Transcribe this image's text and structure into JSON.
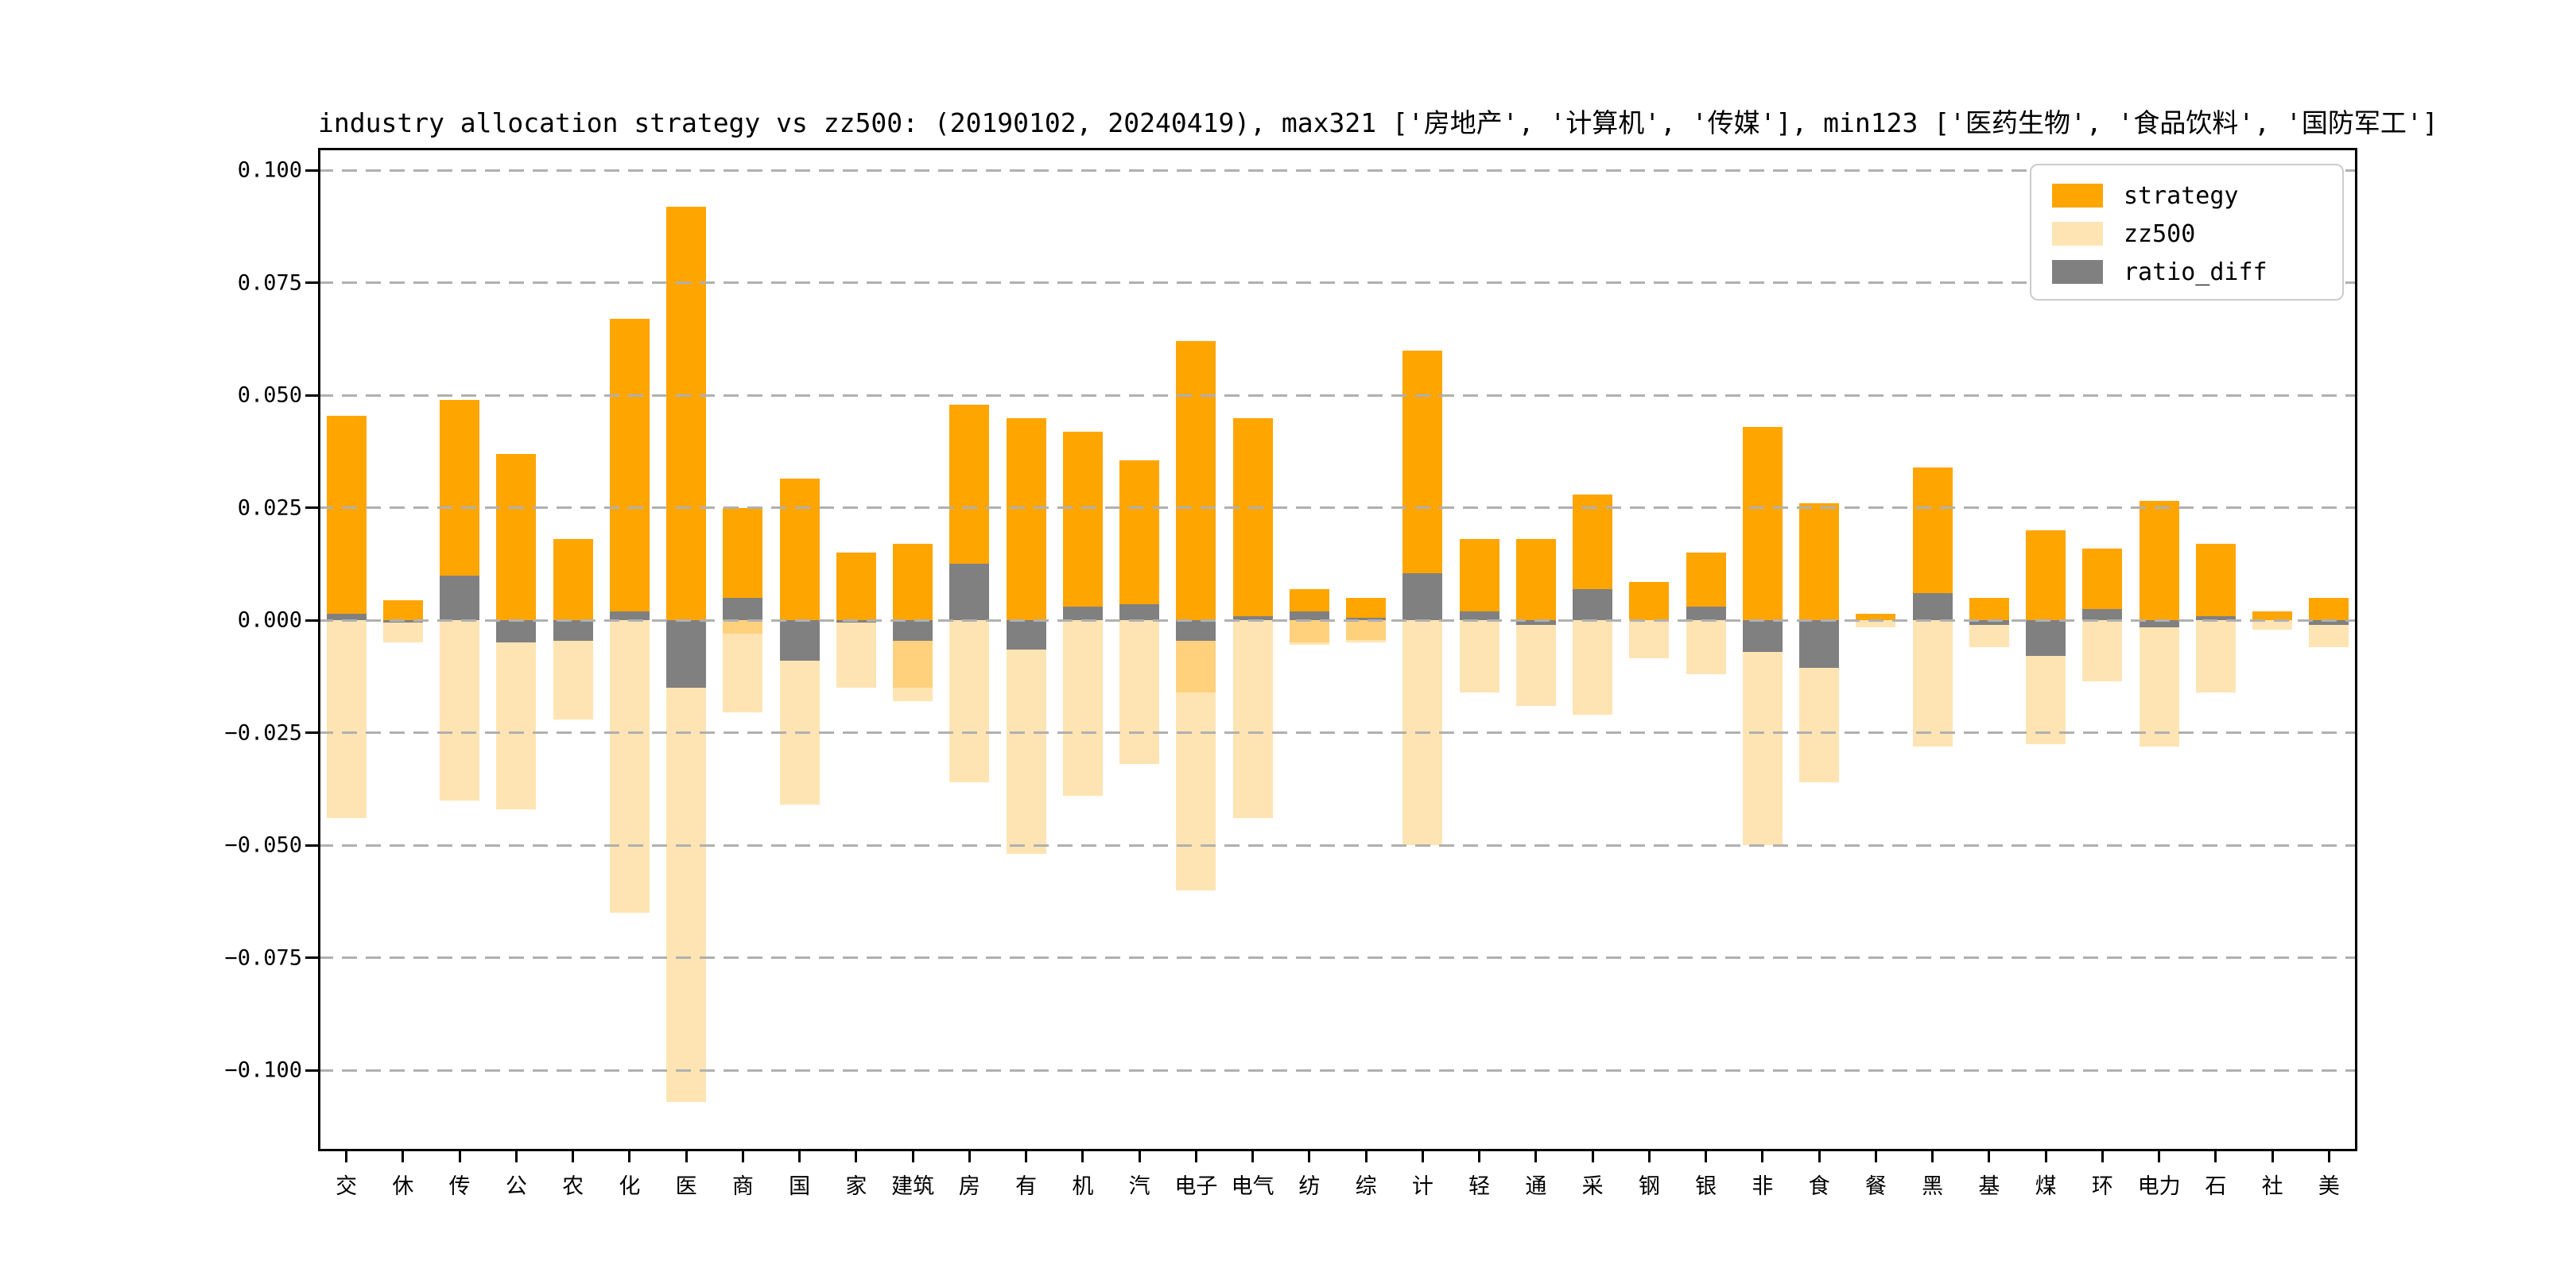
{
  "title": "industry allocation strategy vs zz500: (20190102, 20240419), max321 ['房地产', '计算机', '传媒'], min123 ['医药生物', '食品饮料', '国防军工']",
  "legend": {
    "items": [
      {
        "label": "strategy",
        "color": "#FFA500"
      },
      {
        "label": "zz500",
        "color": "#FFE4B3"
      },
      {
        "label": "ratio_diff",
        "color": "#808080"
      }
    ]
  },
  "axes": {
    "y_ticks": [
      0.1,
      0.075,
      0.05,
      0.025,
      0.0,
      -0.025,
      -0.05,
      -0.075,
      -0.1
    ],
    "y_tick_labels": [
      "0.100",
      "0.075",
      "0.050",
      "0.025",
      "0.000",
      "−0.025",
      "−0.050",
      "−0.075",
      "−0.100"
    ],
    "grid_color": "#b0b0b0",
    "grid_style": "dashed"
  },
  "chart_data": {
    "type": "bar",
    "title": "industry allocation strategy vs zz500: (20190102, 20240419), max321 ['房地产', '计算机', '传媒'], min123 ['医药生物', '食品饮料', '国防军工']",
    "xlabel": "",
    "ylabel": "",
    "ylim": [
      -0.118,
      0.105
    ],
    "grid": true,
    "legend_position": "upper right",
    "categories": [
      "交",
      "休",
      "传",
      "公",
      "农",
      "化",
      "医",
      "商",
      "国",
      "家",
      "建筑",
      "房",
      "有",
      "机",
      "汽",
      "电子",
      "电气",
      "纺",
      "综",
      "计",
      "轻",
      "通",
      "采",
      "钢",
      "银",
      "非",
      "食",
      "餐",
      "黑",
      "基",
      "煤",
      "环",
      "电力",
      "石",
      "社",
      "美"
    ],
    "series": [
      {
        "name": "strategy",
        "color": "#FFA500",
        "values": [
          0.0455,
          0.0045,
          0.049,
          0.037,
          0.018,
          0.067,
          0.092,
          0.025,
          0.0315,
          0.015,
          0.017,
          0.048,
          0.045,
          0.042,
          0.0355,
          0.062,
          0.045,
          0.007,
          0.005,
          0.06,
          0.018,
          0.018,
          0.028,
          0.0085,
          0.015,
          0.043,
          0.026,
          0.0015,
          0.034,
          0.005,
          0.02,
          0.016,
          0.0265,
          0.017,
          0.002,
          0.005
        ]
      },
      {
        "name": "zz500",
        "color": "#FFE4B3",
        "values": [
          -0.044,
          -0.005,
          -0.04,
          -0.042,
          -0.022,
          -0.065,
          -0.107,
          -0.0205,
          -0.041,
          -0.015,
          -0.018,
          -0.036,
          -0.052,
          -0.039,
          -0.032,
          -0.06,
          -0.044,
          -0.0055,
          -0.005,
          -0.05,
          -0.016,
          -0.019,
          -0.021,
          -0.0085,
          -0.012,
          -0.05,
          -0.036,
          -0.0015,
          -0.028,
          -0.006,
          -0.0275,
          -0.0135,
          -0.028,
          -0.016,
          -0.002,
          -0.006
        ]
      },
      {
        "name": "ratio_diff",
        "color": "#808080",
        "values": [
          0.0015,
          -0.0005,
          0.01,
          -0.005,
          -0.0045,
          0.002,
          -0.015,
          0.005,
          -0.009,
          -0.0005,
          -0.0045,
          0.0125,
          -0.0065,
          0.003,
          0.0035,
          -0.0045,
          0.001,
          0.002,
          0.0005,
          0.0105,
          0.002,
          -0.001,
          0.007,
          0,
          0.003,
          -0.007,
          -0.0105,
          0,
          0.006,
          -0.001,
          -0.008,
          0.0025,
          -0.0015,
          0.001,
          0,
          -0.001
        ]
      },
      {
        "name": "zz500_overlap_dark",
        "color": "#FFD17D",
        "values": [
          0,
          0,
          0,
          0,
          0,
          0,
          0,
          -0.003,
          0,
          0,
          -0.015,
          0,
          0,
          0,
          0,
          -0.016,
          0,
          -0.005,
          -0.0044,
          0,
          0,
          0,
          0,
          0,
          0,
          0,
          0,
          0,
          0,
          0,
          0,
          0,
          0,
          0,
          0,
          0
        ]
      }
    ]
  }
}
